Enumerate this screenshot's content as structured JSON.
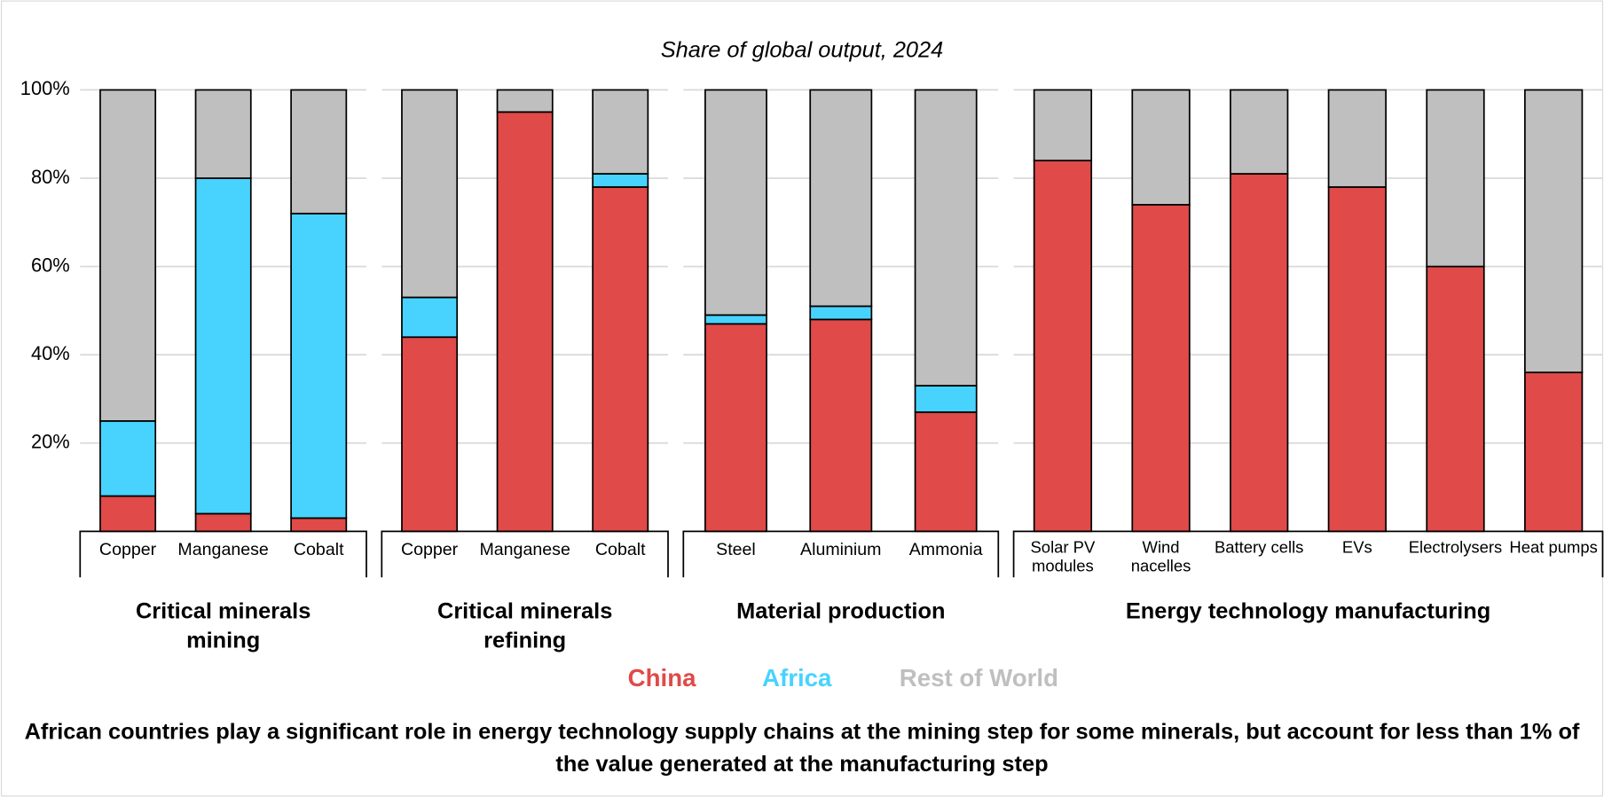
{
  "title": "Share of global output, 2024",
  "caption": "African countries play a significant role in energy technology supply chains at the mining step for some minerals, but account for less than 1% of the value generated at the manufacturing step",
  "chart_data": [
    {
      "type": "bar",
      "stacked": true,
      "title": "Critical minerals mining",
      "categories": [
        "Copper",
        "Manganese",
        "Cobalt"
      ],
      "series": [
        {
          "name": "China",
          "color": "#e04a48",
          "values": [
            8,
            4,
            3
          ]
        },
        {
          "name": "Africa",
          "color": "#48d3ff",
          "values": [
            17,
            76,
            69
          ]
        },
        {
          "name": "Rest of World",
          "color": "#bfbfbf",
          "values": [
            75,
            20,
            28
          ]
        }
      ],
      "ylim": [
        0,
        100
      ],
      "yticks": [
        {
          "value": 20,
          "label": "20%"
        },
        {
          "value": 40,
          "label": "40%"
        },
        {
          "value": 60,
          "label": "60%"
        },
        {
          "value": 80,
          "label": "80%"
        },
        {
          "value": 100,
          "label": "100%"
        }
      ],
      "grid": true
    },
    {
      "type": "bar",
      "stacked": true,
      "title": "Critical minerals refining",
      "categories": [
        "Copper",
        "Manganese",
        "Cobalt"
      ],
      "series": [
        {
          "name": "China",
          "color": "#e04a48",
          "values": [
            44,
            95,
            78
          ]
        },
        {
          "name": "Africa",
          "color": "#48d3ff",
          "values": [
            9,
            0,
            3
          ]
        },
        {
          "name": "Rest of World",
          "color": "#bfbfbf",
          "values": [
            47,
            5,
            19
          ]
        }
      ],
      "ylim": [
        0,
        100
      ]
    },
    {
      "type": "bar",
      "stacked": true,
      "title": "Material production",
      "categories": [
        "Steel",
        "Aluminium",
        "Ammonia"
      ],
      "series": [
        {
          "name": "China",
          "color": "#e04a48",
          "values": [
            47,
            48,
            27
          ]
        },
        {
          "name": "Africa",
          "color": "#48d3ff",
          "values": [
            2,
            3,
            6
          ]
        },
        {
          "name": "Rest of World",
          "color": "#bfbfbf",
          "values": [
            51,
            49,
            67
          ]
        }
      ],
      "ylim": [
        0,
        100
      ]
    },
    {
      "type": "bar",
      "stacked": true,
      "title": "Energy technology manufacturing",
      "categories": [
        "Solar PV modules",
        "Wind nacelles",
        "Battery cells",
        "EVs",
        "Electrolysers",
        "Heat pumps"
      ],
      "series": [
        {
          "name": "China",
          "color": "#e04a48",
          "values": [
            84,
            74,
            81,
            78,
            60,
            36
          ]
        },
        {
          "name": "Africa",
          "color": "#48d3ff",
          "values": [
            0,
            0,
            0,
            0,
            0,
            0
          ]
        },
        {
          "name": "Rest of World",
          "color": "#bfbfbf",
          "values": [
            16,
            26,
            19,
            22,
            40,
            64
          ]
        }
      ],
      "ylim": [
        0,
        100
      ]
    }
  ]
}
